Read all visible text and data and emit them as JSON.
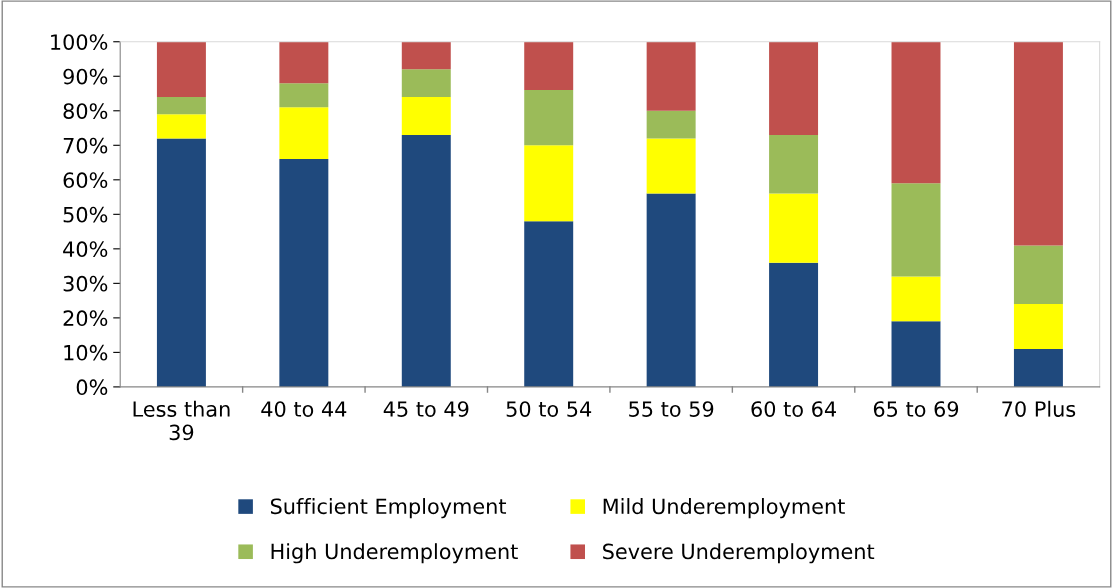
{
  "chart_data": {
    "type": "bar",
    "stacked": true,
    "categories": [
      "Less than\n39",
      "40 to 44",
      "45 to 49",
      "50 to 54",
      "55 to 59",
      "60 to 64",
      "65 to 69",
      "70 Plus"
    ],
    "series": [
      {
        "name": "Sufficient Employment",
        "color": "#1f497d",
        "values": [
          72,
          66,
          73,
          48,
          56,
          36,
          19,
          11
        ]
      },
      {
        "name": "Mild Underemployment",
        "color": "#ffff00",
        "values": [
          7,
          15,
          11,
          22,
          16,
          20,
          13,
          13
        ]
      },
      {
        "name": "High Underemployment",
        "color": "#9bbb59",
        "values": [
          5,
          7,
          8,
          16,
          8,
          17,
          27,
          17
        ]
      },
      {
        "name": "Severe Underemployment",
        "color": "#c0504d",
        "values": [
          16,
          12,
          8,
          14,
          20,
          27,
          41,
          59
        ]
      }
    ],
    "ylim": [
      0,
      100
    ],
    "yticks": [
      {
        "value": 0,
        "label": "0%"
      },
      {
        "value": 10,
        "label": "10%"
      },
      {
        "value": 20,
        "label": "20%"
      },
      {
        "value": 30,
        "label": "30%"
      },
      {
        "value": 40,
        "label": "40%"
      },
      {
        "value": 50,
        "label": "50%"
      },
      {
        "value": 60,
        "label": "60%"
      },
      {
        "value": 70,
        "label": "70%"
      },
      {
        "value": 80,
        "label": "80%"
      },
      {
        "value": 90,
        "label": "90%"
      },
      {
        "value": 100,
        "label": "100%"
      }
    ],
    "grid": false,
    "legend": "bottom"
  }
}
